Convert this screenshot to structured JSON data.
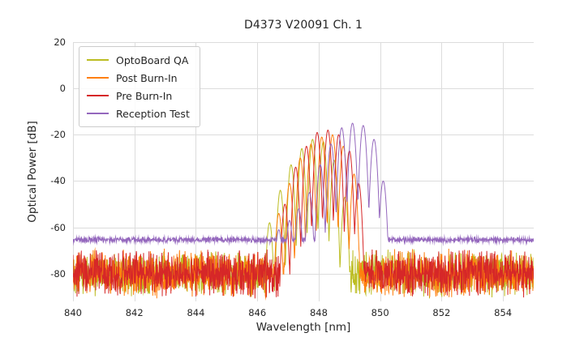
{
  "chart_data": {
    "type": "line",
    "title": "D4373 V20091 Ch. 1",
    "xlabel": "Wavelength [nm]",
    "ylabel": "Optical Power [dB]",
    "xlim": [
      840,
      855
    ],
    "ylim": [
      -92,
      20
    ],
    "x_ticks": [
      840,
      842,
      844,
      846,
      848,
      850,
      852,
      854
    ],
    "y_ticks": [
      20,
      0,
      -20,
      -40,
      -60,
      -80
    ],
    "grid": true,
    "grid_color": "#dcdcdc",
    "background_color": "#ffffff",
    "legend_position": "upper left",
    "series": [
      {
        "name": "OptoBoard QA",
        "color": "#bcbd22",
        "noise_floor_db": -80,
        "noise_amp_db": 11,
        "peak_width_nm": 0.028,
        "seed": 101,
        "peaks_nm_db": [
          [
            846.4,
            -58
          ],
          [
            846.75,
            -44
          ],
          [
            847.1,
            -33
          ],
          [
            847.45,
            -26
          ],
          [
            847.8,
            -22
          ],
          [
            848.15,
            -23
          ],
          [
            848.5,
            -31
          ],
          [
            848.85,
            -47
          ]
        ]
      },
      {
        "name": "Post Burn-In",
        "color": "#ff7f0e",
        "noise_floor_db": -80,
        "noise_amp_db": 11,
        "peak_width_nm": 0.028,
        "seed": 202,
        "peaks_nm_db": [
          [
            846.7,
            -54
          ],
          [
            847.05,
            -41
          ],
          [
            847.4,
            -30
          ],
          [
            847.75,
            -24
          ],
          [
            848.1,
            -21
          ],
          [
            848.45,
            -20
          ],
          [
            848.8,
            -25
          ],
          [
            849.15,
            -37
          ]
        ]
      },
      {
        "name": "Pre Burn-In",
        "color": "#d62728",
        "noise_floor_db": -80,
        "noise_amp_db": 11,
        "peak_width_nm": 0.028,
        "seed": 303,
        "peaks_nm_db": [
          [
            846.9,
            -50
          ],
          [
            847.25,
            -34
          ],
          [
            847.6,
            -25
          ],
          [
            847.95,
            -19
          ],
          [
            848.3,
            -18
          ],
          [
            848.65,
            -20
          ],
          [
            849.0,
            -27
          ],
          [
            849.3,
            -41
          ]
        ]
      },
      {
        "name": "Reception Test",
        "color": "#9467bd",
        "noise_floor_db": -65.4,
        "noise_amp_db": 1.4,
        "peak_width_nm": 0.03,
        "seed": 404,
        "peaks_nm_db": [
          [
            846.7,
            -61
          ],
          [
            847.05,
            -57
          ],
          [
            847.35,
            -52
          ],
          [
            847.7,
            -45
          ],
          [
            848.05,
            -33
          ],
          [
            848.4,
            -24
          ],
          [
            848.75,
            -17
          ],
          [
            849.1,
            -15
          ],
          [
            849.45,
            -16
          ],
          [
            849.8,
            -22
          ],
          [
            850.1,
            -40
          ]
        ]
      }
    ]
  }
}
